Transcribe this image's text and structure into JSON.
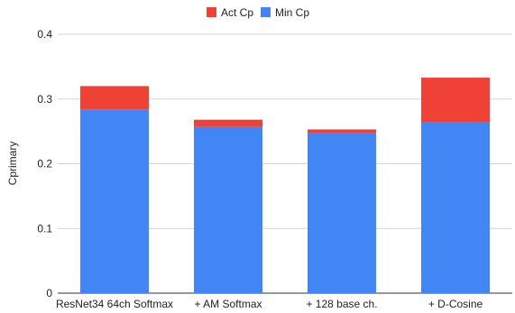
{
  "chart_data": {
    "type": "bar",
    "stacked": true,
    "categories": [
      "ResNet34 64ch Softmax",
      "+ AM Softmax",
      "+ 128 base ch.",
      "+ D-Cosine"
    ],
    "series": [
      {
        "name": "Min Cp",
        "color": "#4285f4",
        "values": [
          0.284,
          0.257,
          0.248,
          0.264
        ]
      },
      {
        "name": "Act Cp",
        "color": "#ef4136",
        "values": [
          0.036,
          0.011,
          0.005,
          0.069
        ]
      }
    ],
    "title": "",
    "xlabel": "",
    "ylabel": "Cprimary",
    "ylim": [
      0,
      0.4
    ],
    "yticks": [
      "0",
      "0.1",
      "0.2",
      "0.3",
      "0.4"
    ],
    "ytick_values": [
      0,
      0.1,
      0.2,
      0.3,
      0.4
    ],
    "grid": true,
    "legend": {
      "position": "top-center",
      "order": [
        "Act Cp",
        "Min Cp"
      ]
    }
  }
}
